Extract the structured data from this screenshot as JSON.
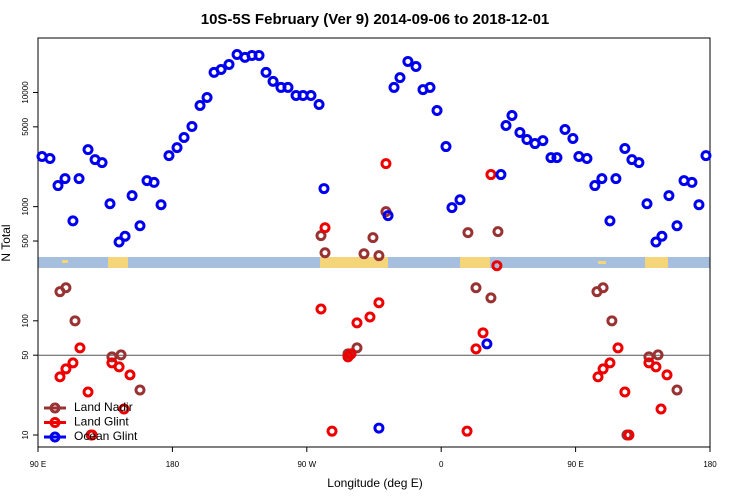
{
  "chart_data": {
    "type": "scatter",
    "title": "10S-5S February (Ver 9)   2014-09-06 to 2018-12-01",
    "x_label": "Longitude (deg E)",
    "y_label": "N Total",
    "ylog": true,
    "xlim": [
      90,
      540
    ],
    "ylim": [
      7.85,
      30000
    ],
    "xticks": [
      {
        "value": 90,
        "label": "90 E"
      },
      180,
      {
        "value": 270,
        "label": "90 W"
      },
      {
        "value": 360,
        "label": "0"
      },
      {
        "value": 450,
        "label": "90 E"
      },
      {
        "value": 540,
        "label": "180"
      }
    ],
    "yticks": [
      10,
      50,
      100,
      500,
      1000,
      5000,
      10000
    ],
    "reference_line": 50,
    "legend": "bottom-left",
    "series": [
      {
        "name": "Land Nadir",
        "color": "#993333",
        "x": [
          104.7,
          108.7,
          114.8,
          125.5,
          139.5,
          145.6,
          158.3,
          279.5,
          282.2,
          297.6,
          303.6,
          308.3,
          314.3,
          318.3,
          323,
          377.9,
          383.3,
          393.3,
          398,
          464.3,
          468.4,
          474.3,
          484.4,
          499.1,
          505.2,
          517.9
        ],
        "values": [
          180,
          195,
          100,
          10,
          48.3,
          50.3,
          24.8,
          557,
          395,
          51.4,
          57.9,
          387,
          535,
          372,
          904,
          592,
          195,
          159,
          604,
          180,
          195,
          100,
          10,
          48.3,
          50.3,
          24.8
        ]
      },
      {
        "name": "Land Glint",
        "color": "#ee0000",
        "x": [
          104.7,
          108.7,
          113.4,
          118.1,
          123.5,
          126.2,
          139.5,
          144.3,
          147.6,
          151.6,
          279.5,
          282.2,
          286.9,
          297.6,
          299.6,
          303.6,
          312.3,
          318.3,
          323,
          377.3,
          383.3,
          388,
          393.3,
          397.3,
          465,
          468.4,
          473,
          478.4,
          483,
          485.7,
          499.1,
          503.8,
          507.2,
          511.2
        ],
        "values": [
          32.3,
          37.9,
          42.8,
          57.9,
          23.8,
          10,
          42.8,
          39.5,
          16.9,
          33.6,
          127,
          654,
          10.8,
          48.3,
          51.4,
          96,
          108,
          144,
          2380,
          10.8,
          56.8,
          78.5,
          1910,
          304,
          32.3,
          37.9,
          42.8,
          57.9,
          23.8,
          10,
          42.8,
          39.5,
          16.9,
          33.6
        ]
      },
      {
        "name": "Ocean Glint",
        "color": "#0000ee",
        "x": [
          92.7,
          98,
          103.4,
          108.1,
          113.4,
          117.5,
          123.5,
          128.2,
          132.9,
          138.2,
          144.3,
          148.3,
          153,
          158.3,
          163,
          167.7,
          172.4,
          177.7,
          183.1,
          187.8,
          193.1,
          198.5,
          203.2,
          207.9,
          212.6,
          217.9,
          223.3,
          228.6,
          233.3,
          238,
          242.7,
          247.4,
          252.7,
          257.4,
          262.8,
          267.5,
          272.8,
          278.2,
          281.5,
          318.3,
          324.4,
          328.4,
          332.4,
          337.7,
          343.1,
          347.8,
          352.5,
          357.2,
          363.2,
          367.2,
          372.6,
          390.6,
          400,
          403.4,
          407.4,
          412.7,
          417.4,
          422.8,
          428.1,
          433.5,
          437.5,
          442.9,
          448.2,
          452.2,
          457.6,
          462.9,
          467.6,
          473,
          477,
          483,
          487.7,
          492.4,
          497.8,
          503.8,
          507.8,
          512.5,
          517.9,
          522.6,
          527.9,
          532.6,
          537.3
        ],
        "values": [
          2750,
          2640,
          1530,
          1760,
          750,
          1760,
          3160,
          2580,
          2430,
          1060,
          490,
          550,
          1250,
          680,
          1690,
          1630,
          1040,
          2800,
          3290,
          4030,
          5040,
          7690,
          9040,
          15000,
          15900,
          17600,
          21500,
          20300,
          21100,
          21100,
          15000,
          12500,
          11070,
          11070,
          9410,
          9410,
          9410,
          7850,
          1440,
          11.5,
          834,
          11070,
          13500,
          18700,
          16900,
          10600,
          11070,
          6950,
          3360,
          980,
          1150,
          62.8,
          1910,
          5140,
          6290,
          4460,
          3870,
          3570,
          3790,
          2690,
          2690,
          4740,
          3950,
          2750,
          2640,
          1530,
          1760,
          750,
          1760,
          3230,
          2580,
          2430,
          1060,
          490,
          550,
          1250,
          680,
          1690,
          1630,
          1040,
          2800
        ]
      }
    ]
  }
}
